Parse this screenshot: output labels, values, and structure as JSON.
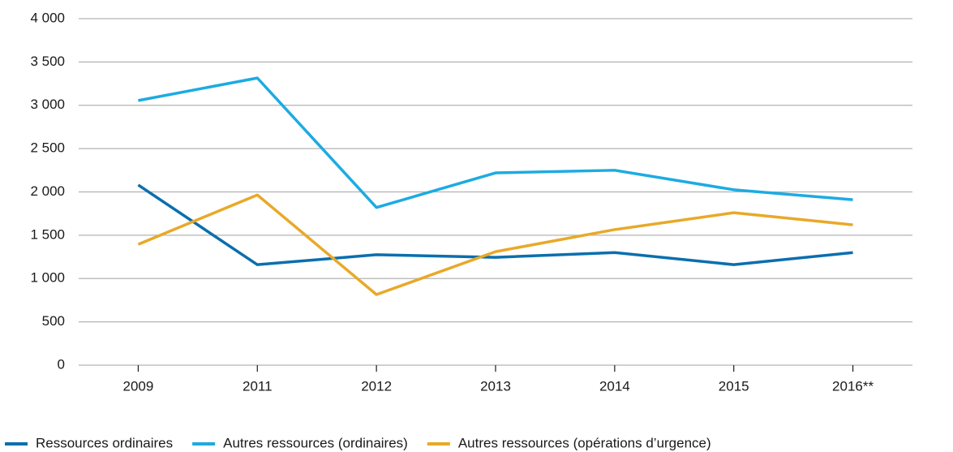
{
  "chart_data": {
    "type": "line",
    "categories": [
      "2009",
      "2011",
      "2012",
      "2013",
      "2014",
      "2015",
      "2016**"
    ],
    "series": [
      {
        "name": "Ressources ordinaires",
        "color": "#0a6fae",
        "values": [
          2080,
          1160,
          1275,
          1245,
          1300,
          1160,
          1300
        ]
      },
      {
        "name": "Autres ressources (ordinaires)",
        "color": "#1cabe2",
        "values": [
          3055,
          3315,
          1820,
          2220,
          2250,
          2025,
          1910
        ]
      },
      {
        "name": "Autres ressources (opérations d’urgence)",
        "color": "#e8a928",
        "values": [
          1395,
          1965,
          815,
          1310,
          1565,
          1760,
          1620
        ]
      }
    ],
    "ylim": [
      0,
      4000
    ],
    "yticks": [
      0,
      500,
      {
        "value": 1000,
        "label": "1 000"
      },
      {
        "value": 1500,
        "label": "1 500"
      },
      {
        "value": 2000,
        "label": "2 000"
      },
      {
        "value": 2500,
        "label": "2 500"
      },
      {
        "value": 3000,
        "label": "3 000"
      },
      {
        "value": 3500,
        "label": "3 500"
      },
      {
        "value": 4000,
        "label": "4 000"
      }
    ],
    "grid": true,
    "legend": "bottom"
  }
}
